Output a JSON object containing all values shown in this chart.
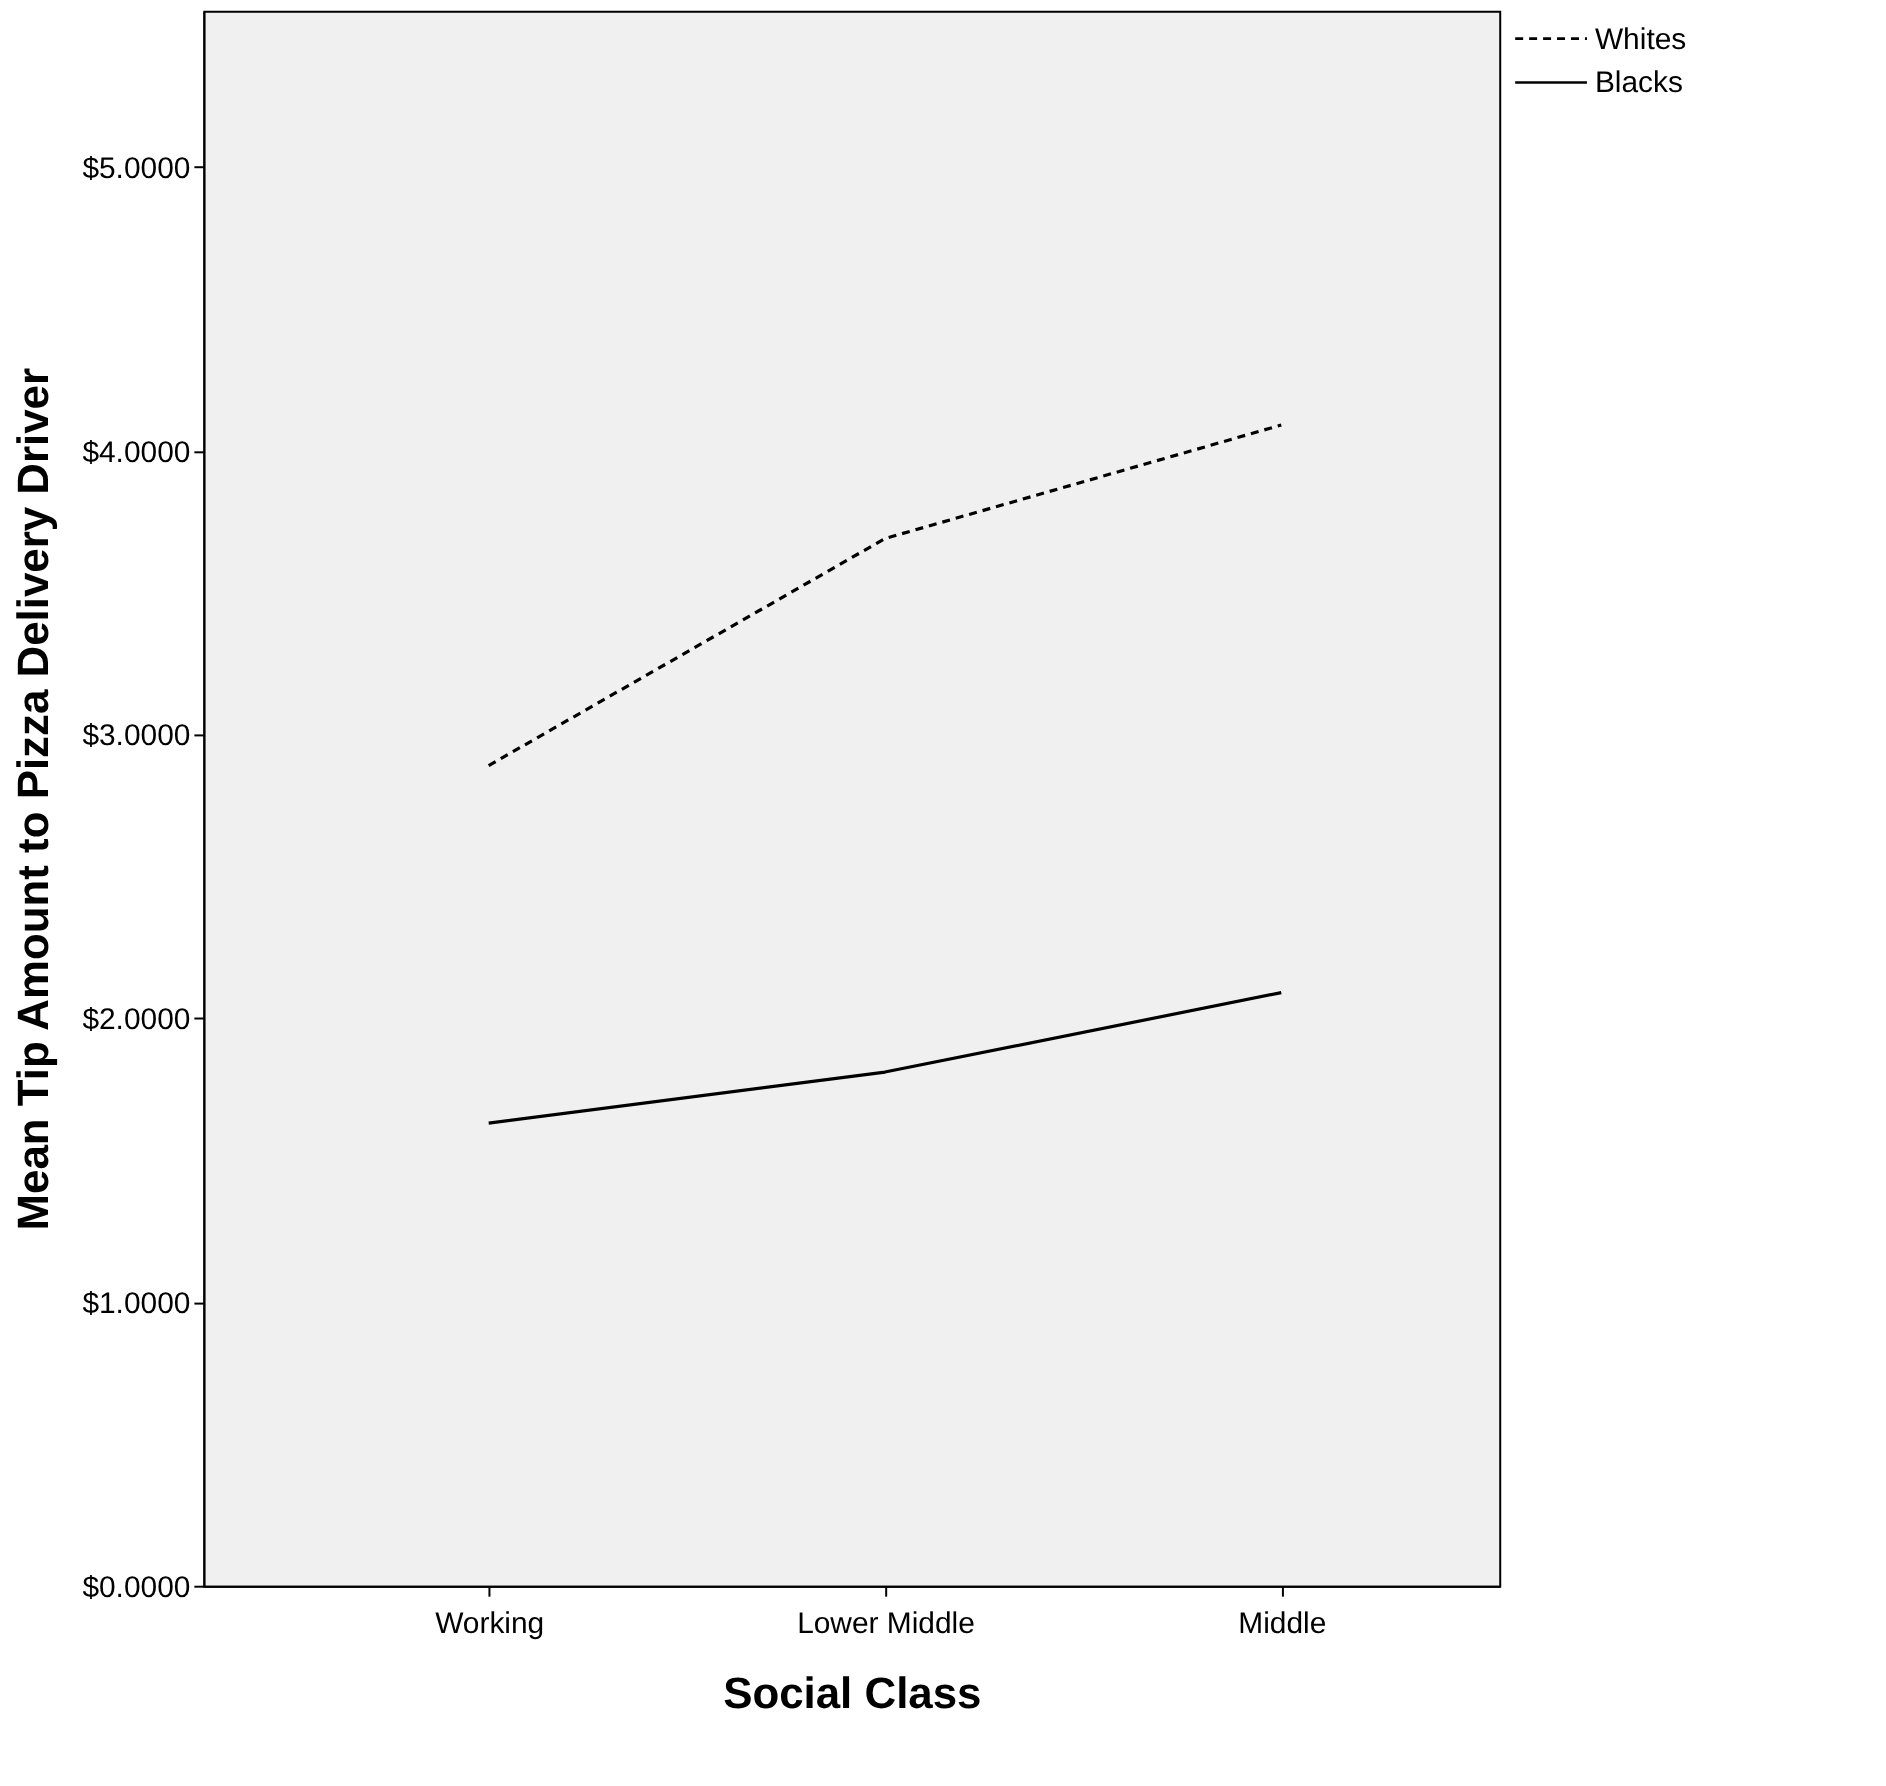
{
  "chart_data": {
    "type": "line",
    "xlabel": "Social Class",
    "ylabel": "Mean Tip Amount to Pizza Delivery Driver",
    "categories": [
      "Working",
      "Lower Middle",
      "Middle"
    ],
    "series": [
      {
        "name": "Whites",
        "color": "#000000",
        "line_style": "dashed",
        "values": [
          2.89,
          3.69,
          4.09
        ]
      },
      {
        "name": "Blacks",
        "color": "#000000",
        "line_style": "solid",
        "values": [
          1.63,
          1.81,
          2.09
        ]
      }
    ],
    "ylim": [
      0,
      5.55
    ],
    "yticks": [
      {
        "value": 0,
        "label": "$0.0000"
      },
      {
        "value": 1,
        "label": "$1.0000"
      },
      {
        "value": 2,
        "label": "$2.0000"
      },
      {
        "value": 3,
        "label": "$3.0000"
      },
      {
        "value": 4,
        "label": "$4.0000"
      },
      {
        "value": 5,
        "label": "$5.0000"
      }
    ],
    "grid": false,
    "legend": "top right",
    "marker": "none"
  }
}
